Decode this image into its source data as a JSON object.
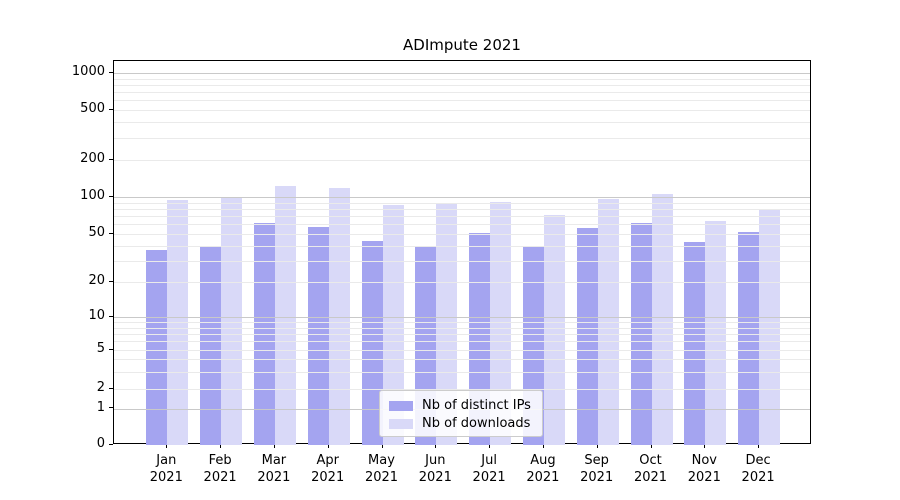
{
  "title": "ADImpute 2021",
  "colors": {
    "distinct_ips": "#a4a4f0",
    "downloads": "#d9d9f8",
    "spine": "#000000",
    "grid_major": "#c9c9c9",
    "grid_minor": "#eaeaea",
    "text": "#000000"
  },
  "y_axis": {
    "tick_labels": [
      "0",
      "1",
      "2",
      "5",
      "10",
      "20",
      "50",
      "100",
      "200",
      "500",
      "1000"
    ],
    "tick_values": [
      0,
      1,
      2,
      5,
      10,
      20,
      50,
      100,
      200,
      500,
      1000
    ],
    "major_grid_values": [
      1,
      10,
      100,
      1000
    ],
    "minor_grid_values": [
      2,
      3,
      4,
      5,
      6,
      7,
      8,
      9,
      20,
      30,
      40,
      50,
      60,
      70,
      80,
      90,
      200,
      300,
      400,
      500,
      600,
      700,
      800,
      900
    ]
  },
  "x_axis": {
    "categories": [
      "Jan 2021",
      "Feb 2021",
      "Mar 2021",
      "Apr 2021",
      "May 2021",
      "Jun 2021",
      "Jul 2021",
      "Aug 2021",
      "Sep 2021",
      "Oct 2021",
      "Nov 2021",
      "Dec 2021"
    ]
  },
  "chart_data": {
    "type": "bar",
    "title": "ADImpute 2021",
    "categories": [
      "Jan 2021",
      "Feb 2021",
      "Mar 2021",
      "Apr 2021",
      "May 2021",
      "Jun 2021",
      "Jul 2021",
      "Aug 2021",
      "Sep 2021",
      "Oct 2021",
      "Nov 2021",
      "Dec 2021"
    ],
    "series": [
      {
        "name": "Nb of distinct IPs",
        "color": "#a4a4f0",
        "values": [
          37,
          40,
          62,
          57,
          44,
          39,
          51,
          40,
          56,
          62,
          43,
          52
        ]
      },
      {
        "name": "Nb of downloads",
        "color": "#d9d9f8",
        "values": [
          95,
          100,
          123,
          119,
          86,
          87,
          91,
          71,
          96,
          106,
          64,
          79
        ]
      }
    ],
    "xlabel": "",
    "ylabel": "",
    "yticks": [
      0,
      1,
      2,
      5,
      10,
      20,
      50,
      100,
      200,
      500,
      1000
    ],
    "ylim": [
      0,
      1250
    ],
    "yscale": "log-like (linear 0-1, compressed log below 10)",
    "grid": true,
    "legend_position": "lower center"
  }
}
